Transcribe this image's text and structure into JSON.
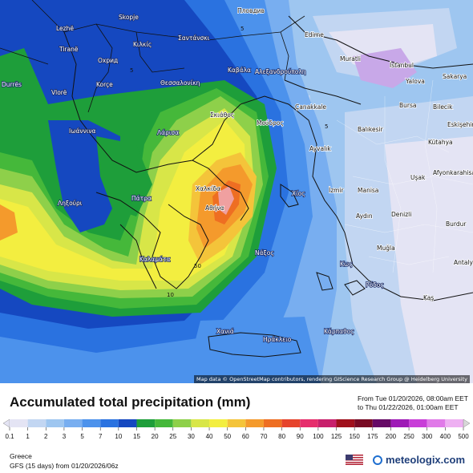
{
  "title": "Accumulated total precipitation (mm)",
  "period": {
    "from": "From Tue 01/20/2026, 08:00am EET",
    "to": "to Thu 01/22/2026, 01:00am EET"
  },
  "region": "Greece",
  "model": "GFS (15 days) from  01/20/2026/06z",
  "brand": "meteologix.com",
  "attribution": "Map data © OpenStreetMap contributors, rendering GIScience Research Group @ Heidelberg University",
  "scale": {
    "labels": [
      "0.1",
      "1",
      "2",
      "3",
      "5",
      "7",
      "10",
      "15",
      "20",
      "25",
      "30",
      "40",
      "50",
      "60",
      "70",
      "80",
      "90",
      "100",
      "125",
      "150",
      "175",
      "200",
      "250",
      "300",
      "400",
      "500"
    ],
    "colors": [
      "#e4e4f4",
      "#c2d6f2",
      "#9ec6f0",
      "#78aef0",
      "#4c92ec",
      "#2a72e0",
      "#1548c0",
      "#1e9e3a",
      "#45b83a",
      "#8ed04a",
      "#d8e648",
      "#f3ee40",
      "#f4c43a",
      "#f49a2c",
      "#ee6e22",
      "#e6442c",
      "#e62e6c",
      "#c8206c",
      "#a0101c",
      "#780a24",
      "#660a66",
      "#9e1ab6",
      "#c83ed8",
      "#e07ae8",
      "#eeb0f2",
      "#d8d8d8"
    ]
  },
  "cities": [
    {
      "name": "Пловдив"
    },
    {
      "name": "Skopje"
    },
    {
      "name": "Lezhë"
    },
    {
      "name": "Tiranë"
    },
    {
      "name": "Охрид"
    },
    {
      "name": "Korçe"
    },
    {
      "name": "Vlorë"
    },
    {
      "name": "Durrës"
    },
    {
      "name": "Edirne"
    },
    {
      "name": "Muratli"
    },
    {
      "name": "İstanbul"
    },
    {
      "name": "Yalova"
    },
    {
      "name": "Sakarya"
    },
    {
      "name": "Bursa"
    },
    {
      "name": "Bilecik"
    },
    {
      "name": "Eskişehir"
    },
    {
      "name": "Kütahya"
    },
    {
      "name": "Balıkesir"
    },
    {
      "name": "Çanakkale"
    },
    {
      "name": "Ayvalık"
    },
    {
      "name": "İzmir"
    },
    {
      "name": "Manisa"
    },
    {
      "name": "Uşak"
    },
    {
      "name": "Afyonkarahisar"
    },
    {
      "name": "Aydın"
    },
    {
      "name": "Denizli"
    },
    {
      "name": "Burdur"
    },
    {
      "name": "Muğla"
    },
    {
      "name": "Antalya"
    },
    {
      "name": "Kaş"
    },
    {
      "name": "Θεσσαλονίκη"
    },
    {
      "name": "Καβάλα"
    },
    {
      "name": "Αλεξανδρούπολη"
    },
    {
      "name": "Σαντάνσκι"
    },
    {
      "name": "Κιλκίς"
    },
    {
      "name": "Ιωάννινα"
    },
    {
      "name": "Λάρισα"
    },
    {
      "name": "Σκιάθος"
    },
    {
      "name": "Μούδρος"
    },
    {
      "name": "Χαλκίδα"
    },
    {
      "name": "Πάτρα"
    },
    {
      "name": "Αθήνα"
    },
    {
      "name": "Ληξούρι"
    },
    {
      "name": "Καλαμάτα"
    },
    {
      "name": "Νάξος"
    },
    {
      "name": "Χίος"
    },
    {
      "name": "Ρόδος"
    },
    {
      "name": "Χανιά"
    },
    {
      "name": "Ηράκλειο"
    },
    {
      "name": "Κάρπαθος"
    },
    {
      "name": "Κως"
    }
  ]
}
